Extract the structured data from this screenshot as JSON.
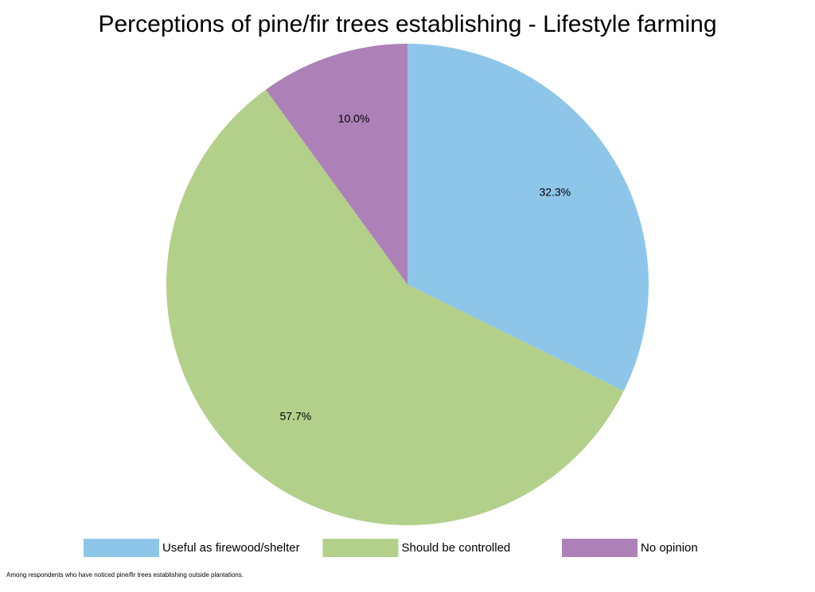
{
  "chart_data": {
    "type": "pie",
    "title": "Perceptions of pine/fir trees establishing - Lifestyle farming",
    "categories": [
      "Useful as firewood/shelter",
      "Should be controlled",
      "No opinion"
    ],
    "values": [
      32.3,
      57.7,
      10.0
    ],
    "value_labels": [
      "32.3%",
      "57.7%",
      "10.0%"
    ],
    "colors": [
      "#8ec6ea",
      "#b2d08a",
      "#ae80b8"
    ],
    "legend": "bottom",
    "footnote": "Among respondents who have noticed pine/fir trees establishing outside plantations."
  }
}
